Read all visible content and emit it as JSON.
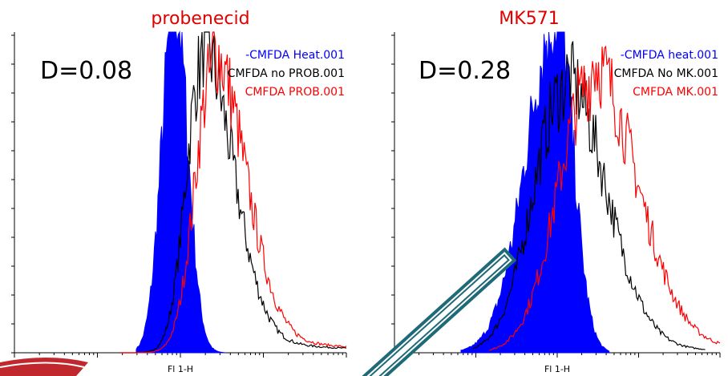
{
  "panels": [
    {
      "title": "probenecid",
      "d_label": "D=0.08",
      "legend": [
        "-CMFDA Heat.001",
        "CMFDA no PROB.001",
        "CMFDA PROB.001"
      ],
      "x_label": "Fl 1-H"
    },
    {
      "title": "MK571",
      "d_label": "D=0.28",
      "legend": [
        "-CMFDA heat.001",
        "CMFDA No MK.001",
        "CMFDA MK.001"
      ],
      "x_label": "Fl 1-H"
    }
  ]
}
